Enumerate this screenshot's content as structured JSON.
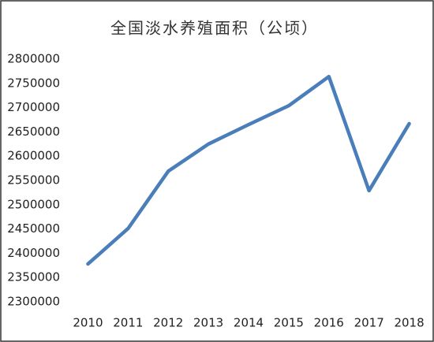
{
  "chart_data": {
    "type": "line",
    "title": "全国淡水养殖面积（公顷）",
    "categories": [
      "2010",
      "2011",
      "2012",
      "2013",
      "2014",
      "2015",
      "2016",
      "2017",
      "2018"
    ],
    "values": [
      2378000,
      2451000,
      2569000,
      2625000,
      2665000,
      2704000,
      2764000,
      2529000,
      2667000
    ],
    "color": "#4a7ebb",
    "ylim": [
      2300000,
      2800000
    ],
    "yticks": [
      2300000,
      2350000,
      2400000,
      2450000,
      2500000,
      2550000,
      2600000,
      2650000,
      2700000,
      2750000,
      2800000
    ],
    "grid": false
  }
}
